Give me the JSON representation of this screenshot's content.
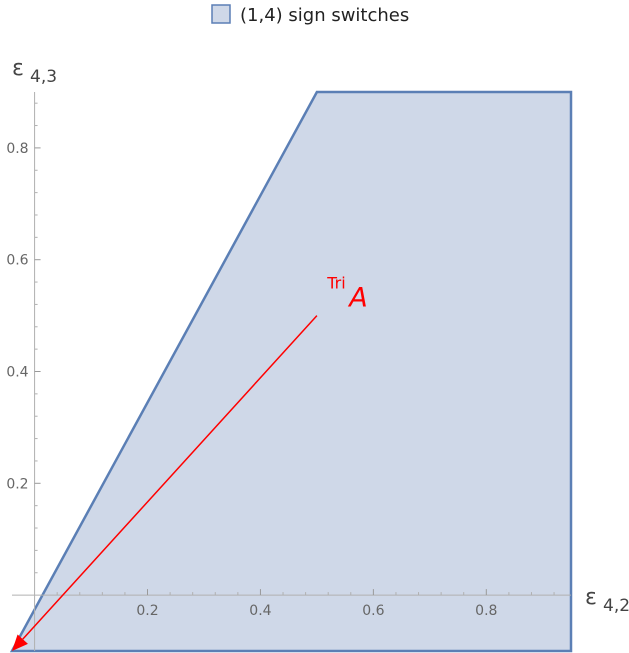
{
  "chart_data": {
    "type": "area",
    "legend": {
      "entries": [
        {
          "label": "(1,4) sign switches",
          "color": "#cfd8e8",
          "edge": "#5b7fb5"
        }
      ],
      "placement": "top-center"
    },
    "xlabel": {
      "main": "ε",
      "sub": "4,2"
    },
    "ylabel": {
      "main": "ε",
      "sub": "4,3"
    },
    "xlim": [
      -0.04,
      0.95
    ],
    "ylim": [
      -0.1,
      0.9
    ],
    "xticks": [
      0.2,
      0.4,
      0.6,
      0.8
    ],
    "yticks": [
      0.2,
      0.4,
      0.6,
      0.8
    ],
    "xtick_labels": [
      "0.2",
      "0.4",
      "0.6",
      "0.8"
    ],
    "ytick_labels": [
      "0.2",
      "0.4",
      "0.6",
      "0.8"
    ],
    "series": [
      {
        "name": "(1,4) sign switches",
        "polygon": [
          [
            -0.04,
            -0.1
          ],
          [
            0.5,
            0.9
          ],
          [
            0.95,
            0.9
          ],
          [
            0.95,
            -0.1
          ]
        ],
        "fill": "#cfd8e8",
        "edge": "#5b7fb5"
      }
    ],
    "annotations": [
      {
        "type": "arrow",
        "from": [
          0.5,
          0.5
        ],
        "to": [
          -0.04,
          -0.1
        ],
        "color": "#ff0000",
        "label_main": "A",
        "label_sup": "Tri",
        "label_at": [
          0.52,
          0.52
        ]
      }
    ],
    "grid": false
  }
}
